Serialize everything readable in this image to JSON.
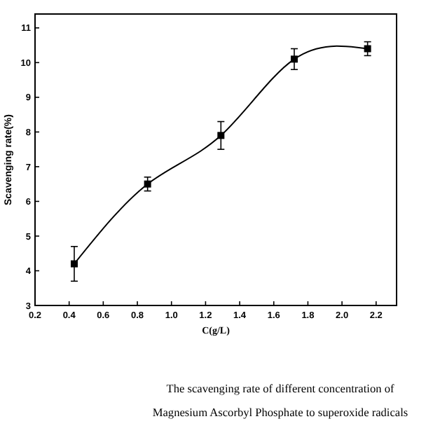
{
  "chart_data": {
    "type": "line",
    "xlabel": "C(g/L)",
    "ylabel": "Scavenging rate(%)",
    "x": [
      0.43,
      0.86,
      1.29,
      1.72,
      2.15
    ],
    "series": [
      {
        "color": "#000000",
        "values": [
          4.2,
          6.5,
          7.9,
          10.1,
          10.4
        ],
        "errors": [
          0.5,
          0.2,
          0.4,
          0.3,
          0.2
        ]
      }
    ],
    "xlim": [
      0.2,
      2.32
    ],
    "xticks": [
      0.2,
      0.4,
      0.6,
      0.8,
      {
        "value": 1,
        "label": "1.0"
      },
      1.2,
      1.4,
      1.6,
      1.8,
      {
        "value": 2,
        "label": "2.0"
      },
      2.2
    ],
    "ylim": [
      3,
      11.4
    ],
    "yticks": [
      3,
      4,
      5,
      6,
      7,
      8,
      9,
      10,
      11
    ],
    "marker": "square",
    "line_style": "solid",
    "grid": false,
    "annotations": [
      "The scavenging rate of different concentration of Magnesium Ascorbyl Phosphate to superoxide radicals"
    ]
  }
}
